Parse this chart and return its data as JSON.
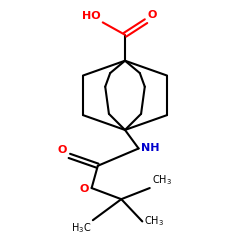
{
  "background": "#ffffff",
  "bond_color": "#000000",
  "acid_color": "#ff0000",
  "nh_color": "#0000cd",
  "o_color": "#ff0000",
  "lw": 1.5,
  "figsize": [
    2.5,
    2.5
  ],
  "dpi": 100,
  "xlim": [
    0,
    10
  ],
  "ylim": [
    0,
    10
  ]
}
